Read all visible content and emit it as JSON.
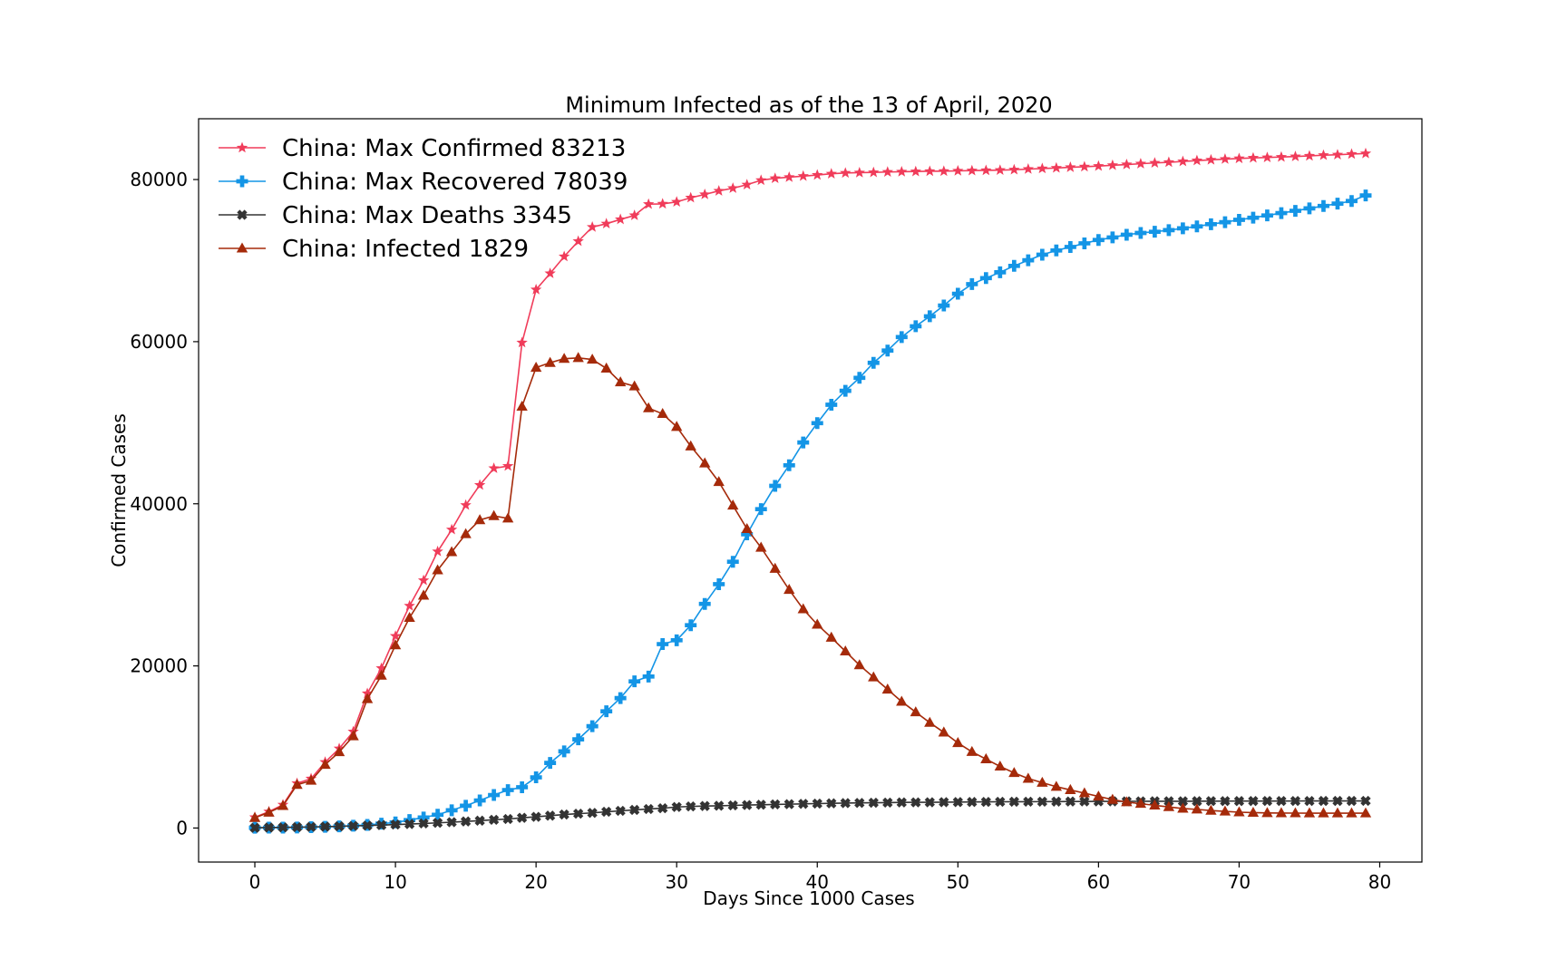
{
  "chart_data": {
    "type": "line",
    "title": "Minimum Infected as of the 13 of April, 2020",
    "xlabel": "Days Since 1000 Cases",
    "ylabel": "Confirmed Cases",
    "xlim": [
      -4,
      83
    ],
    "ylim": [
      -4200,
      87500
    ],
    "xticks": [
      0,
      10,
      20,
      30,
      40,
      50,
      60,
      70,
      80
    ],
    "yticks": [
      0,
      20000,
      40000,
      60000,
      80000
    ],
    "grid": false,
    "legend_position": "top-left",
    "x": [
      0,
      1,
      2,
      3,
      4,
      5,
      6,
      7,
      8,
      9,
      10,
      11,
      12,
      13,
      14,
      15,
      16,
      17,
      18,
      19,
      20,
      21,
      22,
      23,
      24,
      25,
      26,
      27,
      28,
      29,
      30,
      31,
      32,
      33,
      34,
      35,
      36,
      37,
      38,
      39,
      40,
      41,
      42,
      43,
      44,
      45,
      46,
      47,
      48,
      49,
      50,
      51,
      52,
      53,
      54,
      55,
      56,
      57,
      58,
      59,
      60,
      61,
      62,
      63,
      64,
      65,
      66,
      67,
      68,
      69,
      70,
      71,
      72,
      73,
      74,
      75,
      76,
      77,
      78,
      79
    ],
    "series": [
      {
        "name": "China: Max Confirmed 83213",
        "color": "#f03c5a",
        "marker": "star",
        "values": [
          1320,
          2020,
          2870,
          5510,
          6090,
          8130,
          9800,
          11890,
          16600,
          19710,
          23680,
          27410,
          30550,
          34110,
          36810,
          39830,
          42310,
          44380,
          44650,
          59880,
          66420,
          68420,
          70500,
          72390,
          74140,
          74550,
          75080,
          75580,
          76960,
          77000,
          77240,
          77760,
          78160,
          78600,
          78930,
          79360,
          79910,
          80150,
          80290,
          80420,
          80560,
          80710,
          80810,
          80850,
          80880,
          80930,
          80960,
          80990,
          81020,
          81030,
          81070,
          81100,
          81130,
          81160,
          81210,
          81290,
          81360,
          81430,
          81510,
          81580,
          81660,
          81760,
          81850,
          81950,
          82050,
          82130,
          82230,
          82340,
          82430,
          82520,
          82600,
          82670,
          82720,
          82780,
          82840,
          82920,
          83000,
          83060,
          83140,
          83213
        ]
      },
      {
        "name": "China: Max Recovered 78039",
        "color": "#1495e6",
        "marker": "plus",
        "values": [
          35,
          45,
          55,
          70,
          105,
          145,
          210,
          290,
          380,
          540,
          690,
          980,
          1300,
          1640,
          2190,
          2750,
          3400,
          4070,
          4680,
          5030,
          6250,
          8030,
          9460,
          10940,
          12560,
          14400,
          16030,
          18090,
          18690,
          22690,
          23160,
          25020,
          27650,
          30080,
          32850,
          36230,
          39340,
          42210,
          44750,
          47560,
          49950,
          52220,
          53940,
          55540,
          57390,
          58900,
          60570,
          61900,
          63130,
          64460,
          65910,
          67100,
          67840,
          68560,
          69350,
          70040,
          70730,
          71250,
          71680,
          72130,
          72540,
          72860,
          73190,
          73410,
          73560,
          73760,
          73980,
          74220,
          74490,
          74740,
          75030,
          75290,
          75570,
          75860,
          76140,
          76440,
          76740,
          77030,
          77350,
          78039
        ]
      },
      {
        "name": "China: Max Deaths 3345",
        "color": "#333333",
        "marker": "x",
        "values": [
          26,
          56,
          80,
          106,
          132,
          170,
          213,
          259,
          304,
          361,
          425,
          490,
          563,
          637,
          722,
          811,
          908,
          1016,
          1113,
          1259,
          1380,
          1523,
          1665,
          1770,
          1868,
          2004,
          2118,
          2236,
          2345,
          2442,
          2592,
          2663,
          2715,
          2744,
          2788,
          2835,
          2870,
          2912,
          2943,
          2981,
          3012,
          3045,
          3073,
          3099,
          3119,
          3136,
          3158,
          3169,
          3176,
          3189,
          3199,
          3213,
          3226,
          3237,
          3245,
          3249,
          3253,
          3261,
          3270,
          3277,
          3281,
          3287,
          3292,
          3295,
          3300,
          3304,
          3305,
          3312,
          3318,
          3322,
          3326,
          3329,
          3331,
          3333,
          3335,
          3337,
          3339,
          3340,
          3343,
          3345
        ]
      },
      {
        "name": "China: Infected 1829",
        "color": "#a52a0a",
        "marker": "triangle",
        "values": [
          1260,
          1920,
          2740,
          5340,
          5850,
          7820,
          9380,
          11340,
          15920,
          18810,
          22560,
          25940,
          28690,
          31810,
          34050,
          36270,
          38000,
          38500,
          38200,
          52000,
          56800,
          57400,
          57900,
          58000,
          57800,
          56700,
          55000,
          54500,
          51800,
          51100,
          49500,
          47100,
          45000,
          42700,
          39800,
          36900,
          34600,
          32000,
          29400,
          27000,
          25100,
          23500,
          21800,
          20100,
          18600,
          17100,
          15600,
          14300,
          13000,
          11800,
          10500,
          9400,
          8500,
          7600,
          6800,
          6100,
          5600,
          5100,
          4700,
          4300,
          3900,
          3500,
          3200,
          3000,
          2800,
          2600,
          2400,
          2300,
          2150,
          2050,
          1950,
          1900,
          1860,
          1850,
          1840,
          1835,
          1832,
          1830,
          1829,
          1829
        ]
      }
    ]
  }
}
